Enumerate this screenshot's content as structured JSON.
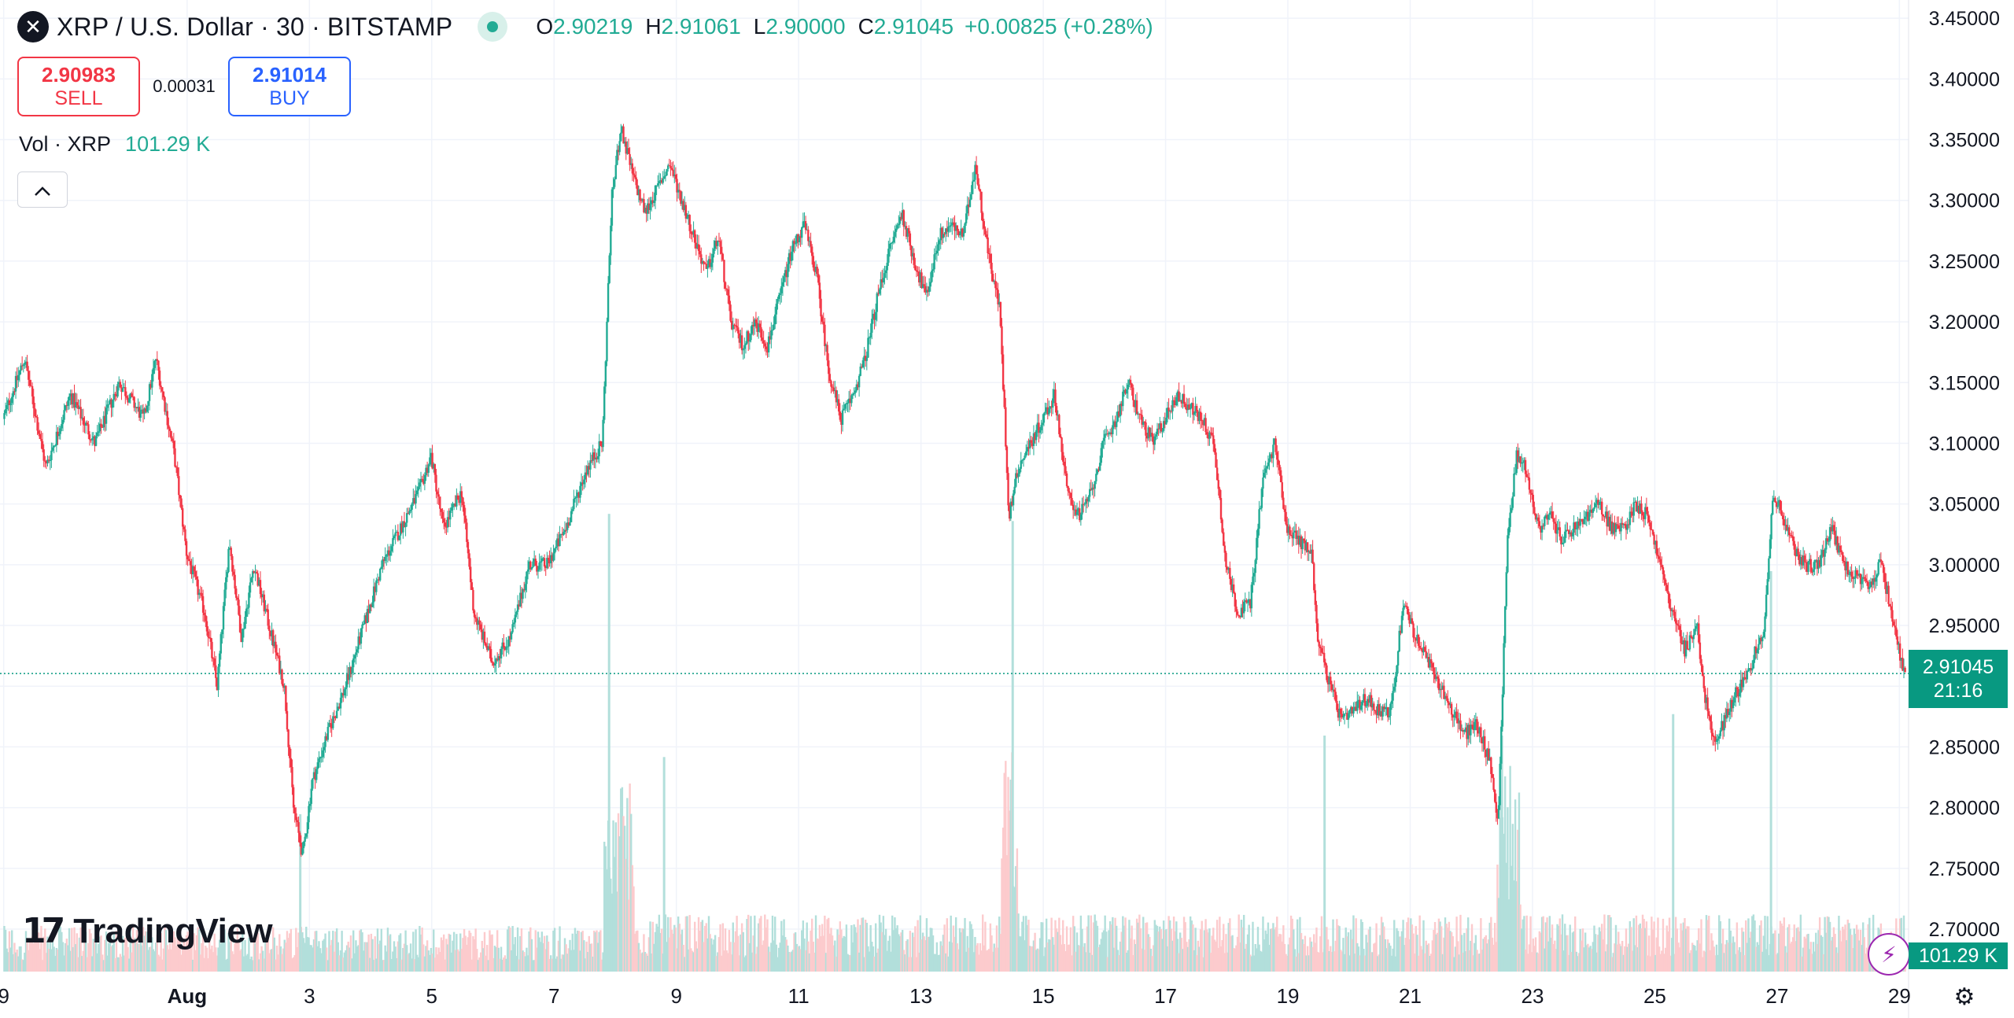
{
  "header": {
    "symbol_icon": "xrp-logo-icon",
    "symbol_glyph": "✕",
    "title": "XRP / U.S. Dollar · 30 · BITSTAMP",
    "ohlc": {
      "o_label": "O",
      "o": "2.90219",
      "h_label": "H",
      "h": "2.91061",
      "l_label": "L",
      "l": "2.90000",
      "c_label": "C",
      "c": "2.91045",
      "change": "+0.00825 (+0.28%)"
    }
  },
  "trade": {
    "sell_price": "2.90983",
    "sell_label": "SELL",
    "spread": "0.00031",
    "buy_price": "2.91014",
    "buy_label": "BUY"
  },
  "volume_legend": {
    "label": "Vol · XRP",
    "value": "101.29 K"
  },
  "collapse_icon": "chevron-up-icon",
  "watermark": {
    "logo_text": "17",
    "text": "TradingView"
  },
  "price_tag": {
    "price": "2.91045",
    "countdown": "21:16"
  },
  "volume_tag": "101.29 K",
  "colors": {
    "up": "#22ab94",
    "down": "#f23645",
    "up_vol": "#b2dfdb",
    "down_vol": "#fccbcd",
    "grid": "#f0f3fa",
    "last_price": "#089981"
  },
  "chart_data": {
    "type": "candlestick",
    "interval": "30",
    "y_axis": {
      "position": "right",
      "range": [
        2.665,
        3.465
      ],
      "ticks": [
        "3.45000",
        "3.40000",
        "3.35000",
        "3.30000",
        "3.25000",
        "3.20000",
        "3.15000",
        "3.10000",
        "3.05000",
        "3.00000",
        "2.95000",
        "2.90000",
        "2.85000",
        "2.80000",
        "2.75000",
        "2.70000"
      ]
    },
    "x_axis": {
      "range_days": [
        -0.06,
        31.15
      ],
      "ticks": [
        {
          "label": "9",
          "day": 0
        },
        {
          "label": "Aug",
          "day": 3
        },
        {
          "label": "3",
          "day": 5
        },
        {
          "label": "5",
          "day": 7
        },
        {
          "label": "7",
          "day": 9
        },
        {
          "label": "9",
          "day": 11
        },
        {
          "label": "11",
          "day": 13
        },
        {
          "label": "13",
          "day": 15
        },
        {
          "label": "15",
          "day": 17
        },
        {
          "label": "17",
          "day": 19
        },
        {
          "label": "19",
          "day": 21
        },
        {
          "label": "21",
          "day": 23
        },
        {
          "label": "23",
          "day": 25
        },
        {
          "label": "25",
          "day": 27
        },
        {
          "label": "27",
          "day": 29
        },
        {
          "label": "29",
          "day": 31
        }
      ]
    },
    "grid": true,
    "last_price": 2.91045,
    "price_path": [
      [
        0.0,
        3.12
      ],
      [
        0.35,
        3.17
      ],
      [
        0.7,
        3.08
      ],
      [
        1.1,
        3.14
      ],
      [
        1.5,
        3.1
      ],
      [
        1.9,
        3.15
      ],
      [
        2.3,
        3.12
      ],
      [
        2.5,
        3.17
      ],
      [
        2.8,
        3.09
      ],
      [
        3.0,
        3.01
      ],
      [
        3.3,
        2.96
      ],
      [
        3.5,
        2.9
      ],
      [
        3.7,
        3.02
      ],
      [
        3.9,
        2.94
      ],
      [
        4.1,
        3.0
      ],
      [
        4.3,
        2.96
      ],
      [
        4.6,
        2.9
      ],
      [
        4.75,
        2.8
      ],
      [
        4.9,
        2.76
      ],
      [
        5.05,
        2.82
      ],
      [
        5.3,
        2.86
      ],
      [
        5.6,
        2.9
      ],
      [
        5.9,
        2.95
      ],
      [
        6.2,
        3.0
      ],
      [
        6.5,
        3.03
      ],
      [
        6.8,
        3.06
      ],
      [
        7.0,
        3.09
      ],
      [
        7.2,
        3.03
      ],
      [
        7.5,
        3.06
      ],
      [
        7.7,
        2.96
      ],
      [
        8.0,
        2.92
      ],
      [
        8.3,
        2.94
      ],
      [
        8.6,
        3.0
      ],
      [
        8.9,
        3.0
      ],
      [
        9.2,
        3.03
      ],
      [
        9.55,
        3.08
      ],
      [
        9.8,
        3.1
      ],
      [
        9.95,
        3.3
      ],
      [
        10.1,
        3.36
      ],
      [
        10.3,
        3.32
      ],
      [
        10.5,
        3.29
      ],
      [
        10.7,
        3.31
      ],
      [
        10.9,
        3.33
      ],
      [
        11.1,
        3.3
      ],
      [
        11.3,
        3.27
      ],
      [
        11.5,
        3.24
      ],
      [
        11.7,
        3.27
      ],
      [
        11.9,
        3.2
      ],
      [
        12.1,
        3.18
      ],
      [
        12.3,
        3.2
      ],
      [
        12.5,
        3.18
      ],
      [
        12.7,
        3.22
      ],
      [
        12.9,
        3.26
      ],
      [
        13.1,
        3.28
      ],
      [
        13.3,
        3.24
      ],
      [
        13.5,
        3.16
      ],
      [
        13.7,
        3.12
      ],
      [
        13.9,
        3.14
      ],
      [
        14.1,
        3.17
      ],
      [
        14.3,
        3.22
      ],
      [
        14.5,
        3.26
      ],
      [
        14.7,
        3.29
      ],
      [
        14.9,
        3.25
      ],
      [
        15.1,
        3.22
      ],
      [
        15.3,
        3.27
      ],
      [
        15.5,
        3.28
      ],
      [
        15.7,
        3.27
      ],
      [
        15.9,
        3.33
      ],
      [
        16.1,
        3.26
      ],
      [
        16.3,
        3.21
      ],
      [
        16.45,
        3.04
      ],
      [
        16.6,
        3.08
      ],
      [
        16.8,
        3.1
      ],
      [
        17.0,
        3.12
      ],
      [
        17.2,
        3.14
      ],
      [
        17.4,
        3.06
      ],
      [
        17.6,
        3.04
      ],
      [
        17.8,
        3.06
      ],
      [
        18.0,
        3.1
      ],
      [
        18.2,
        3.12
      ],
      [
        18.4,
        3.15
      ],
      [
        18.6,
        3.12
      ],
      [
        18.8,
        3.1
      ],
      [
        19.0,
        3.12
      ],
      [
        19.2,
        3.14
      ],
      [
        19.4,
        3.13
      ],
      [
        19.6,
        3.12
      ],
      [
        19.8,
        3.1
      ],
      [
        20.0,
        3.0
      ],
      [
        20.2,
        2.96
      ],
      [
        20.4,
        2.97
      ],
      [
        20.6,
        3.07
      ],
      [
        20.8,
        3.1
      ],
      [
        21.0,
        3.03
      ],
      [
        21.2,
        3.02
      ],
      [
        21.4,
        3.01
      ],
      [
        21.5,
        2.94
      ],
      [
        21.7,
        2.9
      ],
      [
        21.9,
        2.87
      ],
      [
        22.1,
        2.88
      ],
      [
        22.3,
        2.89
      ],
      [
        22.5,
        2.88
      ],
      [
        22.7,
        2.88
      ],
      [
        22.9,
        2.97
      ],
      [
        23.1,
        2.94
      ],
      [
        23.3,
        2.92
      ],
      [
        23.5,
        2.9
      ],
      [
        23.7,
        2.88
      ],
      [
        23.9,
        2.86
      ],
      [
        24.1,
        2.87
      ],
      [
        24.3,
        2.84
      ],
      [
        24.45,
        2.79
      ],
      [
        24.6,
        3.02
      ],
      [
        24.75,
        3.09
      ],
      [
        24.9,
        3.08
      ],
      [
        25.1,
        3.03
      ],
      [
        25.3,
        3.04
      ],
      [
        25.5,
        3.02
      ],
      [
        25.7,
        3.03
      ],
      [
        25.9,
        3.04
      ],
      [
        26.1,
        3.05
      ],
      [
        26.3,
        3.03
      ],
      [
        26.5,
        3.03
      ],
      [
        26.7,
        3.05
      ],
      [
        26.9,
        3.04
      ],
      [
        27.1,
        3.0
      ],
      [
        27.3,
        2.96
      ],
      [
        27.5,
        2.93
      ],
      [
        27.7,
        2.95
      ],
      [
        27.8,
        2.9
      ],
      [
        28.0,
        2.85
      ],
      [
        28.2,
        2.88
      ],
      [
        28.4,
        2.9
      ],
      [
        28.6,
        2.92
      ],
      [
        28.8,
        2.95
      ],
      [
        28.95,
        3.06
      ],
      [
        29.1,
        3.04
      ],
      [
        29.3,
        3.01
      ],
      [
        29.5,
        3.0
      ],
      [
        29.7,
        3.0
      ],
      [
        29.9,
        3.03
      ],
      [
        30.1,
        3.0
      ],
      [
        30.3,
        2.99
      ],
      [
        30.5,
        2.98
      ],
      [
        30.7,
        3.0
      ],
      [
        30.85,
        2.97
      ],
      [
        31.0,
        2.93
      ],
      [
        31.1,
        2.91045
      ]
    ],
    "volume": {
      "max": 330,
      "bands": [
        {
          "from": 0.0,
          "to": 9.8,
          "level": 20
        },
        {
          "from": 9.8,
          "to": 10.3,
          "level": 90
        },
        {
          "from": 10.3,
          "to": 16.3,
          "level": 25
        },
        {
          "from": 16.3,
          "to": 16.6,
          "level": 100
        },
        {
          "from": 16.6,
          "to": 24.4,
          "level": 25
        },
        {
          "from": 24.4,
          "to": 24.8,
          "level": 90
        },
        {
          "from": 24.8,
          "to": 31.15,
          "level": 25
        }
      ],
      "spikes": [
        {
          "day": 9.9,
          "value": 320
        },
        {
          "day": 10.8,
          "value": 150
        },
        {
          "day": 16.5,
          "value": 315
        },
        {
          "day": 24.5,
          "value": 165
        },
        {
          "day": 28.9,
          "value": 280
        },
        {
          "day": 27.3,
          "value": 180
        },
        {
          "day": 4.85,
          "value": 110
        },
        {
          "day": 21.6,
          "value": 165
        }
      ]
    }
  }
}
